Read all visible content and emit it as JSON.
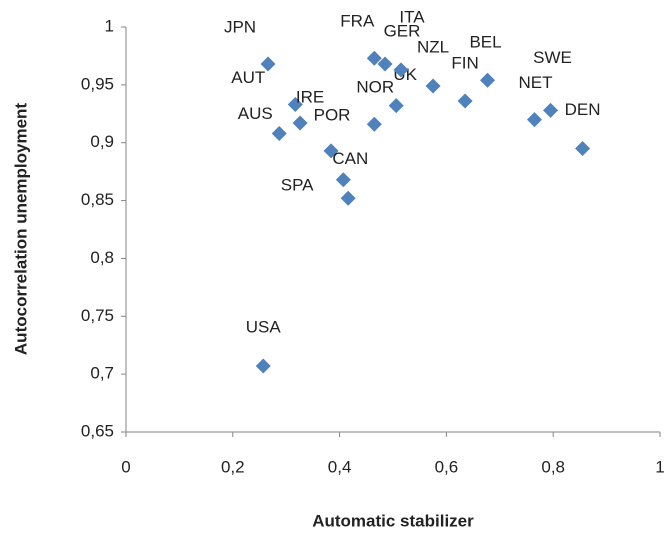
{
  "chart_data": {
    "type": "scatter",
    "x_label": "Automatic stabilizer",
    "y_label": "Autocorrelation unemployment",
    "series": [
      {
        "color": "#4f81bd",
        "labels": [
          "JPN",
          "AUT",
          "IRE",
          "AUS",
          "POR",
          "CAN",
          "SPA",
          "NOR",
          "UK",
          "FRA",
          "GER",
          "ITA",
          "NZL",
          "FIN",
          "BEL",
          "NET",
          "SWE",
          "DEN",
          "USA"
        ],
        "x": [
          0.266,
          0.317,
          0.326,
          0.287,
          0.384,
          0.407,
          0.416,
          0.465,
          0.506,
          0.465,
          0.485,
          0.515,
          0.575,
          0.635,
          0.677,
          0.765,
          0.795,
          0.855,
          0.257
        ],
        "values": [
          0.968,
          0.933,
          0.917,
          0.908,
          0.893,
          0.868,
          0.852,
          0.916,
          0.932,
          0.973,
          0.968,
          0.963,
          0.949,
          0.936,
          0.954,
          0.92,
          0.928,
          0.895,
          0.707
        ]
      }
    ],
    "xlim": [
      0,
      1
    ],
    "xticks": [
      0,
      {
        "value": 0.2,
        "label": "0,2"
      },
      {
        "value": 0.4,
        "label": "0,4"
      },
      {
        "value": 0.6,
        "label": "0,6"
      },
      {
        "value": 0.8,
        "label": "0,8"
      },
      1
    ],
    "ylim": [
      0.65,
      1
    ],
    "yticks": [
      {
        "value": 0.65,
        "label": "0,65"
      },
      {
        "value": 0.7,
        "label": "0,7"
      },
      {
        "value": 0.75,
        "label": "0,75"
      },
      {
        "value": 0.8,
        "label": "0,8"
      },
      {
        "value": 0.85,
        "label": "0,85"
      },
      {
        "value": 0.9,
        "label": "0,9"
      },
      {
        "value": 0.95,
        "label": "0,95"
      },
      1
    ],
    "grid": false
  }
}
